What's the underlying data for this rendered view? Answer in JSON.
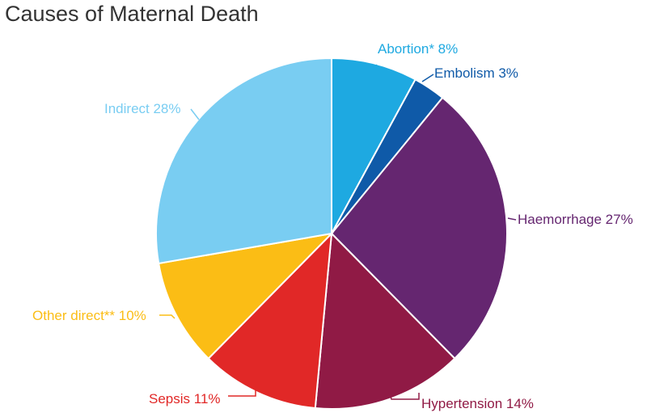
{
  "chart_data": {
    "type": "pie",
    "title": "Causes of Maternal Death",
    "slices": [
      {
        "label": "Abortion* 8%",
        "category": "Abortion*",
        "value": 8,
        "color": "#1ea9e1"
      },
      {
        "label": "Embolism 3%",
        "category": "Embolism",
        "value": 3,
        "color": "#0f5aa8"
      },
      {
        "label": "Haemorrhage 27%",
        "category": "Haemorrhage",
        "value": 27,
        "color": "#652670"
      },
      {
        "label": "Hypertension 14%",
        "category": "Hypertension",
        "value": 14,
        "color": "#901a45"
      },
      {
        "label": "Sepsis 11%",
        "category": "Sepsis",
        "value": 11,
        "color": "#e12827"
      },
      {
        "label": "Other direct** 10%",
        "category": "Other direct**",
        "value": 10,
        "color": "#fbbd15"
      },
      {
        "label": "Indirect 28%",
        "category": "Indirect",
        "value": 28,
        "color": "#79cdf2"
      }
    ],
    "start": "12 o'clock",
    "direction": "clockwise",
    "legend": "none",
    "labels": "outside"
  }
}
